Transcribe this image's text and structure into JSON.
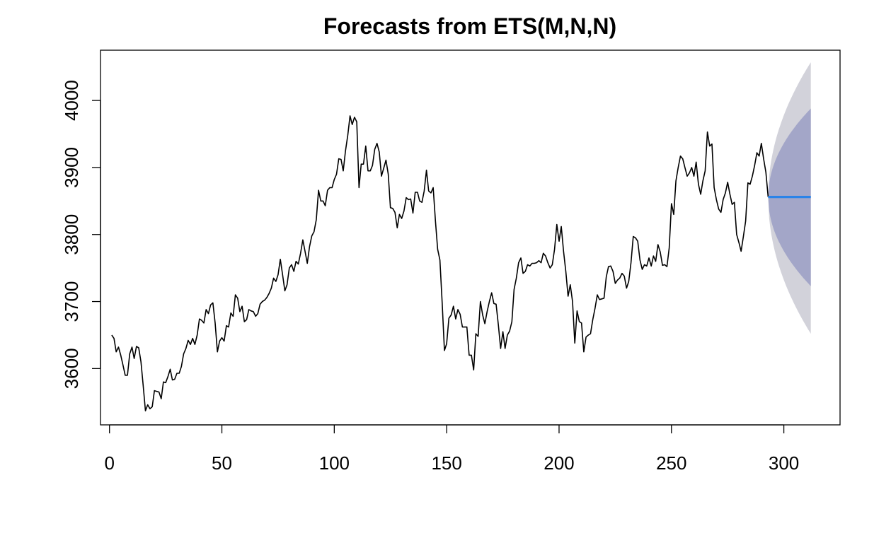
{
  "chart_data": {
    "type": "line",
    "title": "Forecasts from ETS(M,N,N)",
    "xlabel": "",
    "ylabel": "",
    "xlim": [
      -4,
      325
    ],
    "ylim": [
      3516,
      4075
    ],
    "x_ticks": [
      0,
      50,
      100,
      150,
      200,
      250,
      300
    ],
    "x_tick_labels": [
      "0",
      "50",
      "100",
      "150",
      "200",
      "250",
      "300"
    ],
    "y_ticks": [
      3600,
      3700,
      3800,
      3900,
      4000
    ],
    "y_tick_labels": [
      "3600",
      "3700",
      "3800",
      "3900",
      "4000"
    ],
    "series": [
      {
        "x_start": 1,
        "values": [
          3650,
          3645,
          3625,
          3632,
          3620,
          3605,
          3590,
          3590,
          3622,
          3632,
          3615,
          3633,
          3631,
          3610,
          3575,
          3537,
          3546,
          3540,
          3543,
          3567,
          3566,
          3565,
          3555,
          3580,
          3579,
          3588,
          3599,
          3583,
          3584,
          3593,
          3593,
          3603,
          3622,
          3630,
          3642,
          3636,
          3645,
          3636,
          3650,
          3674,
          3672,
          3668,
          3688,
          3682,
          3695,
          3698,
          3668,
          3625,
          3641,
          3646,
          3641,
          3664,
          3662,
          3683,
          3678,
          3710,
          3705,
          3685,
          3693,
          3670,
          3673,
          3688,
          3686,
          3685,
          3678,
          3682,
          3696,
          3700,
          3702,
          3706,
          3712,
          3720,
          3735,
          3730,
          3740,
          3763,
          3740,
          3716,
          3725,
          3750,
          3755,
          3745,
          3760,
          3756,
          3772,
          3792,
          3775,
          3757,
          3782,
          3798,
          3804,
          3822,
          3866,
          3850,
          3850,
          3843,
          3866,
          3870,
          3870,
          3882,
          3890,
          3913,
          3912,
          3895,
          3925,
          3948,
          3977,
          3964,
          3975,
          3968,
          3870,
          3905,
          3905,
          3932,
          3895,
          3895,
          3903,
          3927,
          3936,
          3923,
          3887,
          3899,
          3911,
          3890,
          3840,
          3839,
          3833,
          3810,
          3830,
          3824,
          3835,
          3855,
          3852,
          3853,
          3832,
          3863,
          3863,
          3850,
          3848,
          3865,
          3896,
          3865,
          3862,
          3870,
          3820,
          3778,
          3762,
          3698,
          3627,
          3637,
          3675,
          3680,
          3693,
          3674,
          3688,
          3681,
          3662,
          3662,
          3662,
          3620,
          3620,
          3598,
          3652,
          3648,
          3700,
          3680,
          3667,
          3685,
          3700,
          3713,
          3697,
          3696,
          3665,
          3630,
          3655,
          3630,
          3650,
          3656,
          3670,
          3718,
          3735,
          3758,
          3765,
          3742,
          3745,
          3755,
          3753,
          3757,
          3757,
          3758,
          3761,
          3758,
          3772,
          3768,
          3758,
          3750,
          3755,
          3778,
          3815,
          3790,
          3812,
          3775,
          3745,
          3708,
          3725,
          3700,
          3638,
          3686,
          3670,
          3668,
          3625,
          3647,
          3650,
          3652,
          3673,
          3690,
          3710,
          3703,
          3704,
          3705,
          3737,
          3752,
          3753,
          3745,
          3727,
          3732,
          3735,
          3742,
          3738,
          3720,
          3730,
          3758,
          3797,
          3795,
          3790,
          3762,
          3748,
          3755,
          3753,
          3765,
          3753,
          3768,
          3760,
          3785,
          3774,
          3754,
          3755,
          3752,
          3780,
          3846,
          3830,
          3880,
          3900,
          3917,
          3913,
          3900,
          3887,
          3892,
          3900,
          3887,
          3908,
          3875,
          3860,
          3880,
          3895,
          3953,
          3932,
          3935,
          3870,
          3852,
          3838,
          3833,
          3852,
          3862,
          3878,
          3860,
          3845,
          3848,
          3800,
          3788,
          3775,
          3797,
          3820,
          3877,
          3875,
          3887,
          3903,
          3922,
          3917,
          3936,
          3913,
          3893,
          3856
        ]
      }
    ],
    "forecast": {
      "x_start": 293,
      "x_end": 312,
      "point": 3856,
      "lo80_end": 3723,
      "hi80_end": 3988,
      "lo95_end": 3652,
      "hi95_end": 4057
    },
    "colors": {
      "series": "#000000",
      "forecast_line": "#2b83e8",
      "band_80": "#a3a6c8",
      "band_95": "#d2d2da"
    }
  }
}
